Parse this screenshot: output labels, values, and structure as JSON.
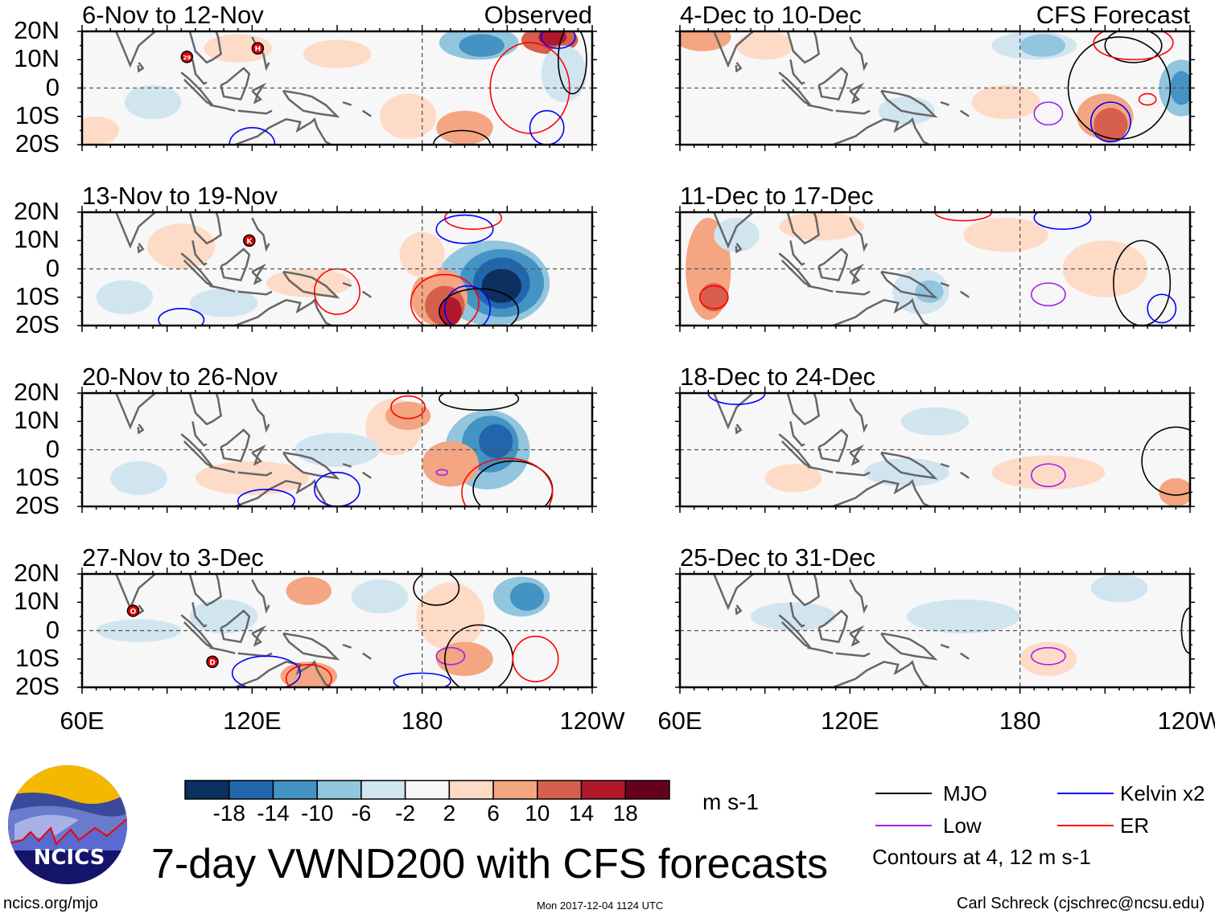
{
  "chart_data": {
    "type": "heatmap",
    "title": "7-day VWND200 with CFS forecasts",
    "units": "m s-1",
    "column_labels": {
      "left": "Observed",
      "right": "CFS Forecast"
    },
    "panels": [
      {
        "title": "6-Nov to 12-Nov",
        "source": "Observed",
        "storms": [
          "29",
          "H"
        ]
      },
      {
        "title": "13-Nov to 19-Nov",
        "source": "Observed",
        "storms": [
          "K"
        ]
      },
      {
        "title": "20-Nov to 26-Nov",
        "source": "Observed",
        "storms": []
      },
      {
        "title": "27-Nov to 3-Dec",
        "source": "Observed",
        "storms": [
          "O",
          "D"
        ]
      },
      {
        "title": "4-Dec to 10-Dec",
        "source": "CFS Forecast",
        "storms": []
      },
      {
        "title": "11-Dec to 17-Dec",
        "source": "CFS Forecast",
        "storms": []
      },
      {
        "title": "18-Dec to 24-Dec",
        "source": "CFS Forecast",
        "storms": []
      },
      {
        "title": "25-Dec to 31-Dec",
        "source": "CFS Forecast",
        "storms": []
      }
    ],
    "lat_ticks": [
      "20N",
      "10N",
      "0",
      "10S",
      "20S"
    ],
    "lon_ticks": [
      "60E",
      "120E",
      "180",
      "120W"
    ],
    "lat_range": [
      -20,
      20
    ],
    "lon_range": [
      60,
      240
    ],
    "colorbar": {
      "levels": [
        "-18",
        "-14",
        "-10",
        "-6",
        "-2",
        "2",
        "6",
        "10",
        "14",
        "18"
      ],
      "colors": [
        "#0b2f5e",
        "#2166ac",
        "#4393c3",
        "#92c5de",
        "#d1e5f0",
        "#f7f7f7",
        "#fddbc7",
        "#f4a582",
        "#d6604d",
        "#b2182b",
        "#67001f"
      ]
    },
    "legend": [
      {
        "label": "MJO",
        "color": "#000000"
      },
      {
        "label": "Kelvin x2",
        "color": "#0000ff"
      },
      {
        "label": "Low",
        "color": "#a020f0"
      },
      {
        "label": "ER",
        "color": "#ff0000"
      }
    ],
    "contour_note": "Contours at 4, 12 m s-1"
  },
  "footer": {
    "logo_text": "NCICS",
    "url": "ncics.org/mjo",
    "timestamp": "Mon 2017-12-04 1124 UTC",
    "author": "Carl Schreck (cjschrec@ncsu.edu)"
  }
}
